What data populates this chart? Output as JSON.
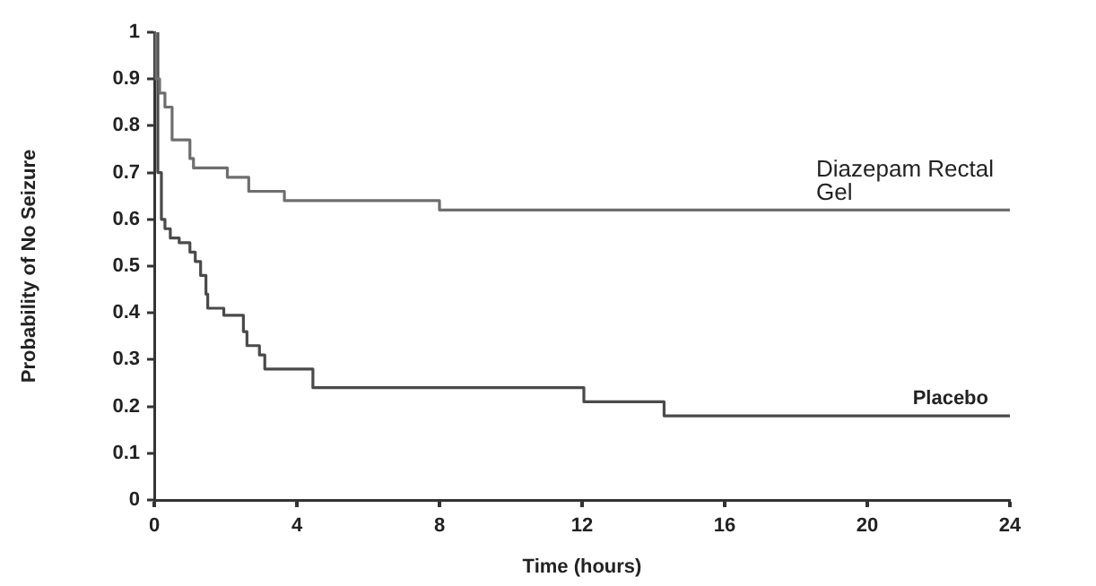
{
  "chart_data": {
    "type": "step",
    "xlabel": "Time (hours)",
    "ylabel": "Probability of No Seizure",
    "xlim": [
      0,
      24
    ],
    "xticks": [
      0,
      4,
      8,
      12,
      16,
      20,
      24
    ],
    "ylim": [
      0,
      1
    ],
    "yticks": [
      0,
      0.1,
      0.2,
      0.3,
      0.4,
      0.5,
      0.6,
      0.7,
      0.8,
      0.9,
      1
    ],
    "grid": false,
    "legend": false,
    "marker": "none",
    "line_style": "solid",
    "series": [
      {
        "name": "Diazepam Rectal Gel",
        "color": "#6e6e6e",
        "x": [
          0,
          0.05,
          0.15,
          0.3,
          0.5,
          1.0,
          1.1,
          2.05,
          2.65,
          3.65,
          8,
          24
        ],
        "values": [
          1,
          0.9,
          0.87,
          0.84,
          0.77,
          0.73,
          0.71,
          0.69,
          0.66,
          0.64,
          0.62,
          0.62
        ]
      },
      {
        "name": "Placebo",
        "color": "#4a4a4a",
        "x": [
          0,
          0.1,
          0.2,
          0.3,
          0.45,
          0.7,
          1.0,
          1.15,
          1.3,
          1.45,
          1.5,
          1.95,
          2.5,
          2.6,
          2.95,
          3.1,
          4.45,
          12.05,
          14.3,
          24
        ],
        "values": [
          1,
          0.7,
          0.6,
          0.58,
          0.56,
          0.55,
          0.53,
          0.51,
          0.48,
          0.44,
          0.41,
          0.395,
          0.36,
          0.33,
          0.31,
          0.28,
          0.24,
          0.21,
          0.18,
          0.18
        ]
      }
    ]
  }
}
